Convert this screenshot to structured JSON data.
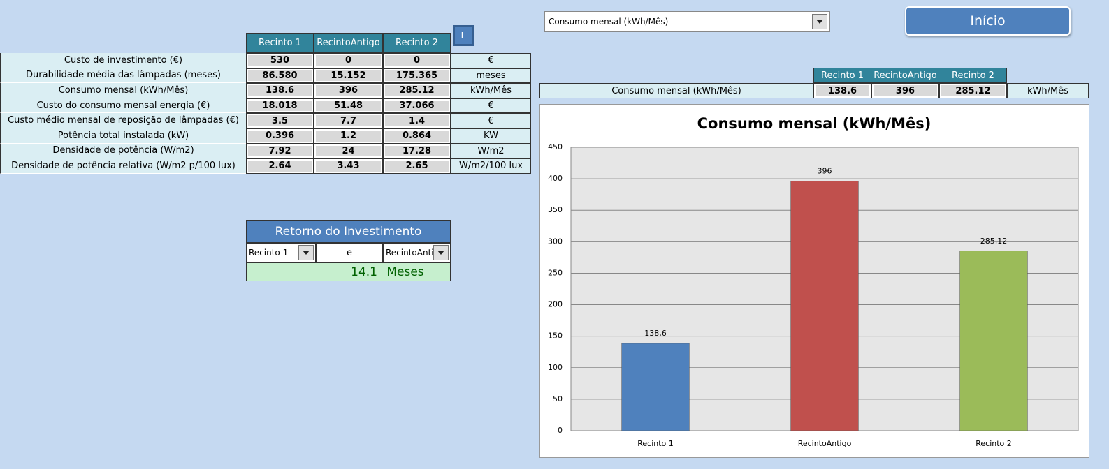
{
  "dropdown": {
    "selected": "Consumo mensal (kWh/Mês)"
  },
  "button": {
    "label": "Início"
  },
  "small_button": {
    "label": "L"
  },
  "table": {
    "columns": [
      "Recinto 1",
      "RecintoAntigo",
      "Recinto 2"
    ],
    "rows": [
      {
        "label": "Custo de investimento (€)",
        "values": [
          "530",
          "0",
          "0"
        ],
        "unit": "€"
      },
      {
        "label": "Durabilidade média das lâmpadas (meses)",
        "values": [
          "86.580",
          "15.152",
          "175.365"
        ],
        "unit": "meses"
      },
      {
        "label": "Consumo mensal (kWh/Mês)",
        "values": [
          "138.6",
          "396",
          "285.12"
        ],
        "unit": "kWh/Mês"
      },
      {
        "label": "Custo do consumo mensal energia (€)",
        "values": [
          "18.018",
          "51.48",
          "37.066"
        ],
        "unit": "€"
      },
      {
        "label": "Custo médio mensal de reposição de lâmpadas (€)",
        "values": [
          "3.5",
          "7.7",
          "1.4"
        ],
        "unit": "€"
      },
      {
        "label": "Potência total instalada (kW)",
        "values": [
          "0.396",
          "1.2",
          "0.864"
        ],
        "unit": "KW"
      },
      {
        "label": "Densidade de potência (W/m2)",
        "values": [
          "7.92",
          "24",
          "17.28"
        ],
        "unit": "W/m2"
      },
      {
        "label": "Densidade de potência relativa (W/m2 p/100 lux)",
        "values": [
          "2.64",
          "3.43",
          "2.65"
        ],
        "unit": "W/m2/100 lux"
      }
    ]
  },
  "retorno": {
    "title": "Retorno do Investimento",
    "left": "Recinto 1",
    "connector": "e",
    "right": "RecintoAntig",
    "result": "14.1",
    "unit": "Meses"
  },
  "summary": {
    "columns": [
      "Recinto 1",
      "RecintoAntigo",
      "Recinto 2"
    ],
    "label": "Consumo mensal (kWh/Mês)",
    "values": [
      "138.6",
      "396",
      "285.12"
    ],
    "unit": "kWh/Mês"
  },
  "chart_data": {
    "type": "bar",
    "title": "Consumo mensal (kWh/Mês)",
    "categories": [
      "Recinto 1",
      "RecintoAntigo",
      "Recinto 2"
    ],
    "values": [
      138.6,
      396,
      285.12
    ],
    "value_labels": [
      "138,6",
      "396",
      "285,12"
    ],
    "colors": [
      "#4f81bd",
      "#c0504d",
      "#9bbb59"
    ],
    "ylim": [
      0,
      450
    ],
    "yticks": [
      0,
      50,
      100,
      150,
      200,
      250,
      300,
      350,
      400,
      450
    ],
    "grid": true
  }
}
